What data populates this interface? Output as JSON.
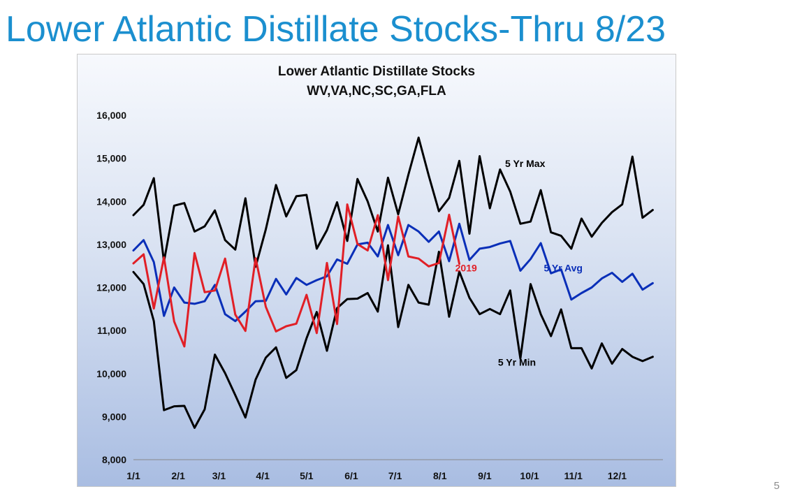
{
  "slide": {
    "title": "Lower Atlantic Distillate Stocks-Thru 8/23",
    "page_number": "5"
  },
  "chart_data": {
    "type": "line",
    "title": "Lower Atlantic Distillate Stocks",
    "subtitle": "WV,VA,NC,SC,GA,FLA",
    "xlabel": "",
    "ylabel": "",
    "ylim": [
      8000,
      16000
    ],
    "yticks": [
      8000,
      9000,
      10000,
      11000,
      12000,
      13000,
      14000,
      15000,
      16000
    ],
    "ytick_labels": [
      "8,000",
      "9,000",
      "10,000",
      "11,000",
      "12,000",
      "13,000",
      "14,000",
      "15,000",
      "16,000"
    ],
    "xlim": [
      1,
      53
    ],
    "xticks": [
      1,
      5.4,
      9.4,
      13.7,
      18,
      22.4,
      26.7,
      31.1,
      35.5,
      39.9,
      44.2,
      48.5
    ],
    "xtick_labels": [
      "1/1",
      "2/1",
      "3/1",
      "4/1",
      "5/1",
      "6/1",
      "7/1",
      "8/1",
      "9/1",
      "10/1",
      "11/1",
      "12/1"
    ],
    "grid": false,
    "legend": "inline labels",
    "series": [
      {
        "name": "5 Yr Max",
        "color": "#000000",
        "label_at": [
          37.5,
          14800
        ],
        "values": [
          13680,
          13920,
          14540,
          12600,
          13900,
          13960,
          13300,
          13420,
          13790,
          13100,
          12880,
          14070,
          12480,
          13350,
          14380,
          13650,
          14120,
          14150,
          12900,
          13330,
          13980,
          13080,
          14520,
          14000,
          13300,
          14550,
          13700,
          14620,
          15480,
          14600,
          13770,
          14080,
          14940,
          13250,
          15050,
          13840,
          14740,
          14230,
          13480,
          13530,
          14260,
          13280,
          13200,
          12900,
          13600,
          13180,
          13500,
          13750,
          13930,
          15040,
          13620,
          13800
        ]
      },
      {
        "name": "5 Yr Min",
        "color": "#000000",
        "label_at": [
          36.8,
          10180
        ],
        "values": [
          12360,
          12080,
          11220,
          9150,
          9240,
          9250,
          8740,
          9170,
          10440,
          10010,
          9500,
          8980,
          9860,
          10370,
          10610,
          9900,
          10080,
          10820,
          11430,
          10530,
          11520,
          11730,
          11740,
          11870,
          11440,
          12980,
          11080,
          12060,
          11650,
          11600,
          12830,
          11320,
          12370,
          11760,
          11380,
          11500,
          11380,
          11930,
          10350,
          12080,
          11380,
          10870,
          11490,
          10590,
          10590,
          10120,
          10700,
          10230,
          10570,
          10390,
          10290,
          10390
        ]
      },
      {
        "name": "5 Yr Avg",
        "color": "#0a2fb8",
        "label_at": [
          41.3,
          12370
        ],
        "values": [
          12860,
          13100,
          12590,
          11340,
          12000,
          11650,
          11620,
          11680,
          12060,
          11380,
          11220,
          11440,
          11680,
          11690,
          12200,
          11840,
          12220,
          12060,
          12170,
          12260,
          12650,
          12550,
          13000,
          13040,
          12720,
          13450,
          12750,
          13450,
          13300,
          13060,
          13300,
          12610,
          13480,
          12640,
          12900,
          12940,
          13020,
          13080,
          12390,
          12660,
          13030,
          12330,
          12420,
          11720,
          11870,
          12000,
          12210,
          12340,
          12130,
          12320,
          11950,
          12100
        ]
      },
      {
        "name": "2019",
        "color": "#e11f26",
        "label_at": [
          32.6,
          12370
        ],
        "values": [
          12560,
          12770,
          11510,
          12700,
          11210,
          10630,
          12800,
          11890,
          11930,
          12670,
          11370,
          10990,
          12680,
          11550,
          10980,
          11100,
          11160,
          11830,
          10940,
          12570,
          11150,
          13930,
          13010,
          12860,
          13680,
          12170,
          13650,
          12720,
          12670,
          12490,
          12570,
          13690,
          12550
        ]
      }
    ]
  }
}
